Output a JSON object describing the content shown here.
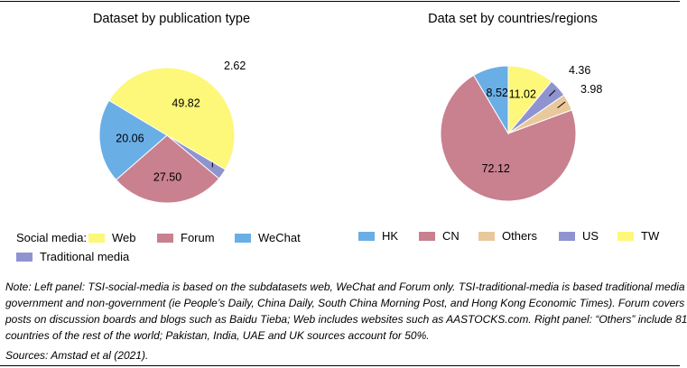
{
  "chart_data": [
    {
      "type": "pie",
      "title": "Dataset by publication type",
      "slices": [
        {
          "label": "Traditional media",
          "value": 2.62,
          "color": "#8f94d0"
        },
        {
          "label": "Forum",
          "value": 27.5,
          "color": "#c9808f"
        },
        {
          "label": "WeChat",
          "value": 20.06,
          "color": "#6aaee6"
        },
        {
          "label": "Web",
          "value": 49.82,
          "color": "#fdf77a"
        }
      ],
      "data_labels": [
        "2.62",
        "27.50",
        "20.06",
        "49.82"
      ],
      "legend_prefix": "Social media:",
      "legend": [
        {
          "label": "Web",
          "color": "#fdf77a"
        },
        {
          "label": "Forum",
          "color": "#c9808f"
        },
        {
          "label": "WeChat",
          "color": "#6aaee6"
        },
        {
          "label": "Traditional media",
          "color": "#8f94d0"
        }
      ]
    },
    {
      "type": "pie",
      "title": "Data set by countries/regions",
      "slices": [
        {
          "label": "TW",
          "value": 11.02,
          "color": "#fdf77a"
        },
        {
          "label": "US",
          "value": 4.36,
          "color": "#8f94d0"
        },
        {
          "label": "Others",
          "value": 3.98,
          "color": "#e9c89c"
        },
        {
          "label": "CN",
          "value": 72.12,
          "color": "#c9808f"
        },
        {
          "label": "HK",
          "value": 8.52,
          "color": "#6aaee6"
        }
      ],
      "data_labels": [
        "11.02",
        "4.36",
        "3.98",
        "72.12",
        "8.52"
      ],
      "legend": [
        {
          "label": "HK",
          "color": "#6aaee6"
        },
        {
          "label": "CN",
          "color": "#c9808f"
        },
        {
          "label": "Others",
          "color": "#e9c89c"
        },
        {
          "label": "US",
          "color": "#8f94d0"
        },
        {
          "label": "TW",
          "color": "#fdf77a"
        }
      ]
    }
  ],
  "note": {
    "lines": [
      "Note: Left panel: TSI-social-media is based on the subdatasets web, WeChat and Forum only. TSI-traditional-media is based traditional media",
      "government and non-government (ie People’s Daily, China Daily, South China Morning Post, and Hong Kong Economic Times). Forum covers",
      "posts on discussion boards and blogs such as Baidu Tieba; Web includes websites such as AASTOCKS.com. Right panel: “Others” include 81",
      "countries of the rest of the world; Pakistan, India, UAE and UK sources account for 50%."
    ],
    "sources": "Sources: Amstad et al (2021)."
  }
}
